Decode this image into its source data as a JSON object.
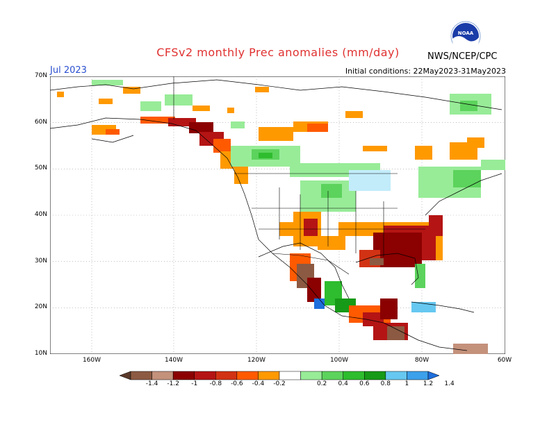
{
  "header": {
    "title": "CFSv2 monthly Prec anomalies (mm/day)",
    "month": "Jul 2023",
    "initial_conditions": "Initial conditions: 22May2023-31May2023",
    "agency": "NWS/NCEP/CPC",
    "logo_text": "NOAA"
  },
  "axes": {
    "lat_labels": [
      "70N",
      "60N",
      "50N",
      "40N",
      "30N",
      "20N",
      "10N"
    ],
    "lon_labels": [
      "160W",
      "140W",
      "120W",
      "100W",
      "80W",
      "60W"
    ]
  },
  "colorbar": {
    "labels": [
      "-1.4",
      "-1.2",
      "-1",
      "-0.8",
      "-0.6",
      "-0.4",
      "-0.2",
      "0.2",
      "0.4",
      "0.6",
      "0.8",
      "1",
      "1.2",
      "1.4"
    ],
    "colors": [
      "#5a3a2a",
      "#8c5a42",
      "#c4917b",
      "#8b0000",
      "#b41414",
      "#d23214",
      "#ff5a00",
      "#ff9900",
      "#ffffff",
      "#98ec98",
      "#5cd35c",
      "#2ebd2e",
      "#179a17",
      "#66c8f0",
      "#3ca0ea",
      "#1e6edc"
    ]
  }
}
